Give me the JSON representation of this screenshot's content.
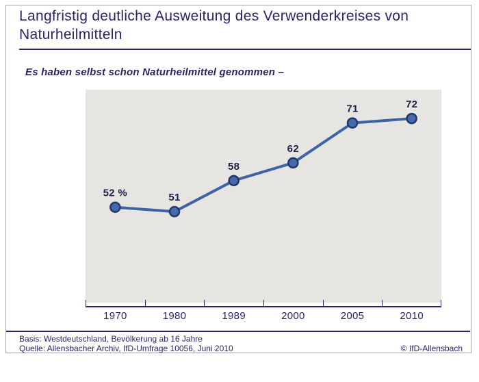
{
  "header": {
    "title": "Langfristig deutliche Ausweitung des Verwenderkreises von Naturheilmitteln",
    "subtitle": "Es haben selbst schon Naturheilmittel genommen –"
  },
  "chart_data": {
    "type": "line",
    "title": "Langfristig deutliche Ausweitung des Verwenderkreises von Naturheilmitteln",
    "subtitle": "Es haben selbst schon Naturheilmittel genommen –",
    "categories": [
      "1970",
      "1980",
      "1989",
      "2000",
      "2005",
      "2010"
    ],
    "values": [
      52,
      51,
      58,
      62,
      71,
      72
    ],
    "value_labels": [
      "52 %",
      "51",
      "58",
      "62",
      "71",
      "72"
    ],
    "unit": "%",
    "xlabel": "",
    "ylabel": "",
    "ylim": [
      30.5,
      78.5
    ],
    "grid": false,
    "legend_position": "none",
    "markers": true,
    "line_color": "#3e64a7",
    "marker_fill": "#4569ac",
    "marker_stroke": "#203768",
    "label_color": "#1d1d46",
    "plot_background": "#e6e5e2"
  },
  "footer": {
    "basis": "Basis: Westdeutschland, Bevölkerung ab 16 Jahre",
    "quelle": "Quelle: Allensbacher Archiv, IfD-Umfrage 10056, Juni 2010",
    "copyright": "© IfD-Allensbach"
  },
  "colors": {
    "navy": "#2a2368",
    "frame_border": "#a3a3a3",
    "page_background": "#ffffff"
  }
}
